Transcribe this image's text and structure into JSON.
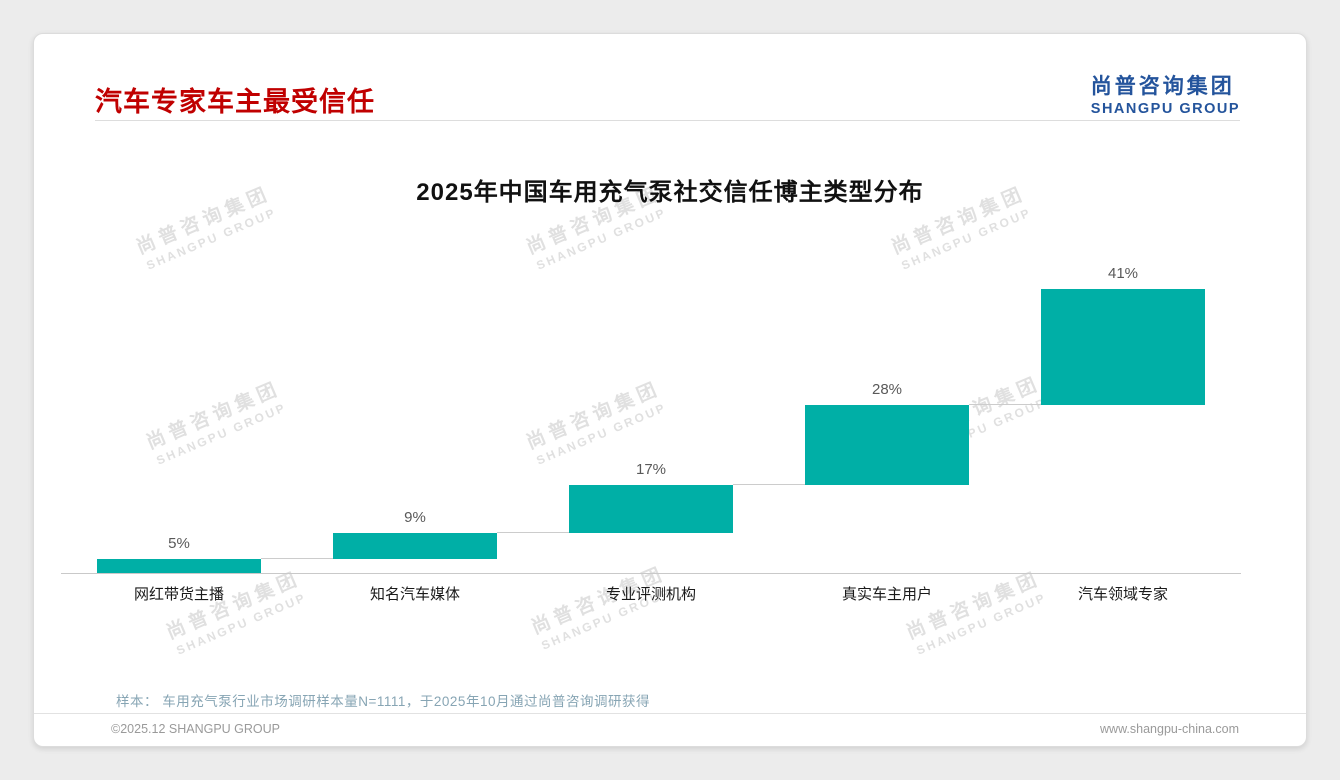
{
  "page": {
    "header": {
      "title": "汽车专家车主最受信任"
    },
    "logo": {
      "cn": "尚普咨询集团",
      "en": "SHANGPU GROUP"
    },
    "watermark": {
      "cn": "尚普咨询集团",
      "en": "SHANGPU GROUP"
    },
    "footnote": "样本： 车用充气泵行业市场调研样本量N=1111，于2025年10月通过尚普咨询调研获得",
    "footer": {
      "left": "©2025.12 SHANGPU GROUP",
      "right": "www.shangpu-china.com"
    }
  },
  "colors": {
    "accent_teal": "#00AFA6",
    "title_red": "#C00000",
    "logo_blue": "#24549C"
  },
  "chart_data": {
    "type": "bar",
    "subtype": "waterfall-steps",
    "title": "2025年中国车用充气泵社交信任博主类型分布",
    "categories": [
      "网红带货主播",
      "知名汽车媒体",
      "专业评测机构",
      "真实车主用户",
      "汽车领域专家"
    ],
    "values": [
      5,
      9,
      17,
      28,
      41
    ],
    "labels": [
      "5%",
      "9%",
      "17%",
      "28%",
      "41%"
    ],
    "cumulative": true,
    "bar_color": "#00AFA6",
    "xlabel": "",
    "ylabel": "",
    "ylim": [
      0,
      100
    ],
    "grid": false,
    "legend": false
  }
}
